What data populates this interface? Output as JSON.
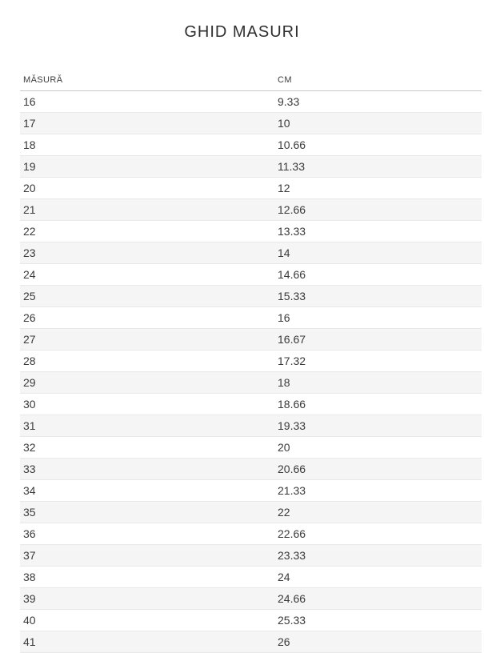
{
  "page": {
    "title": "GHID MASURI"
  },
  "table": {
    "columns": [
      {
        "label": "MĂSURĂ"
      },
      {
        "label": "CM"
      }
    ],
    "rows": [
      {
        "size": "16",
        "cm": "9.33"
      },
      {
        "size": "17",
        "cm": "10"
      },
      {
        "size": "18",
        "cm": "10.66"
      },
      {
        "size": "19",
        "cm": "11.33"
      },
      {
        "size": "20",
        "cm": "12"
      },
      {
        "size": "21",
        "cm": "12.66"
      },
      {
        "size": "22",
        "cm": "13.33"
      },
      {
        "size": "23",
        "cm": "14"
      },
      {
        "size": "24",
        "cm": "14.66"
      },
      {
        "size": "25",
        "cm": "15.33"
      },
      {
        "size": "26",
        "cm": "16"
      },
      {
        "size": "27",
        "cm": "16.67"
      },
      {
        "size": "28",
        "cm": "17.32"
      },
      {
        "size": "29",
        "cm": "18"
      },
      {
        "size": "30",
        "cm": "18.66"
      },
      {
        "size": "31",
        "cm": "19.33"
      },
      {
        "size": "32",
        "cm": "20"
      },
      {
        "size": "33",
        "cm": "20.66"
      },
      {
        "size": "34",
        "cm": "21.33"
      },
      {
        "size": "35",
        "cm": "22"
      },
      {
        "size": "36",
        "cm": "22.66"
      },
      {
        "size": "37",
        "cm": "23.33"
      },
      {
        "size": "38",
        "cm": "24"
      },
      {
        "size": "39",
        "cm": "24.66"
      },
      {
        "size": "40",
        "cm": "25.33"
      },
      {
        "size": "41",
        "cm": "26"
      }
    ]
  },
  "colors": {
    "title_text": "#2f2f2f",
    "body_text": "#3a3a3a",
    "zebra_row": "#f5f5f5",
    "row_border": "#e8e8e8",
    "header_border": "#c8c8c8"
  }
}
